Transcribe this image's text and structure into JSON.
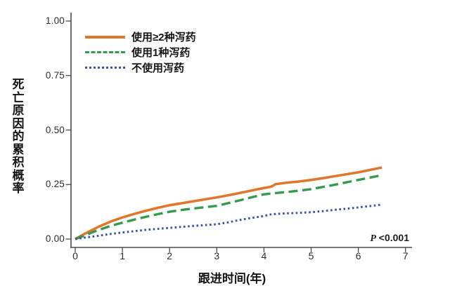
{
  "chart_data": {
    "type": "line",
    "title": "",
    "xlabel": "跟进时间(年)",
    "ylabel": "死亡原因的累积概率",
    "xlim": [
      0,
      7.35
    ],
    "ylim": [
      0,
      1.05
    ],
    "grid": false,
    "legend_position": "top-left-inside",
    "x_ticks": [
      0,
      1,
      2,
      3,
      4,
      5,
      6,
      7
    ],
    "y_ticks": [
      {
        "v": 1.0,
        "label": "1.00"
      },
      {
        "v": 0.75,
        "label": "0.75"
      },
      {
        "v": 0.5,
        "label": "0.50"
      },
      {
        "v": 0.25,
        "label": "0.25"
      },
      {
        "v": 0.0,
        "label": "0.00"
      }
    ],
    "series": [
      {
        "name": "使用≥2种泻药",
        "color": "#E0772E",
        "style": "solid",
        "points": [
          [
            0,
            0
          ],
          [
            0.15,
            0.018
          ],
          [
            0.3,
            0.035
          ],
          [
            0.5,
            0.057
          ],
          [
            0.75,
            0.08
          ],
          [
            1,
            0.099
          ],
          [
            1.25,
            0.115
          ],
          [
            1.5,
            0.13
          ],
          [
            1.75,
            0.143
          ],
          [
            2,
            0.155
          ],
          [
            2.25,
            0.164
          ],
          [
            2.5,
            0.173
          ],
          [
            2.75,
            0.182
          ],
          [
            3,
            0.191
          ],
          [
            3.25,
            0.201
          ],
          [
            3.5,
            0.212
          ],
          [
            3.75,
            0.223
          ],
          [
            4,
            0.234
          ],
          [
            4.15,
            0.24
          ],
          [
            4.25,
            0.252
          ],
          [
            4.5,
            0.259
          ],
          [
            4.75,
            0.264
          ],
          [
            5,
            0.271
          ],
          [
            5.25,
            0.279
          ],
          [
            5.5,
            0.288
          ],
          [
            5.75,
            0.297
          ],
          [
            6,
            0.306
          ],
          [
            6.25,
            0.317
          ],
          [
            6.5,
            0.328
          ]
        ]
      },
      {
        "name": "使用1种泻药",
        "color": "#349A4E",
        "style": "dashed",
        "points": [
          [
            0,
            0
          ],
          [
            0.15,
            0.012
          ],
          [
            0.3,
            0.025
          ],
          [
            0.5,
            0.042
          ],
          [
            0.75,
            0.06
          ],
          [
            1,
            0.075
          ],
          [
            1.25,
            0.089
          ],
          [
            1.5,
            0.102
          ],
          [
            1.75,
            0.114
          ],
          [
            2,
            0.125
          ],
          [
            2.25,
            0.133
          ],
          [
            2.5,
            0.14
          ],
          [
            2.75,
            0.146
          ],
          [
            3,
            0.152
          ],
          [
            3.25,
            0.165
          ],
          [
            3.5,
            0.178
          ],
          [
            3.75,
            0.192
          ],
          [
            4,
            0.205
          ],
          [
            4.25,
            0.211
          ],
          [
            4.5,
            0.216
          ],
          [
            4.75,
            0.222
          ],
          [
            5,
            0.229
          ],
          [
            5.25,
            0.239
          ],
          [
            5.5,
            0.249
          ],
          [
            5.75,
            0.26
          ],
          [
            6,
            0.271
          ],
          [
            6.25,
            0.282
          ],
          [
            6.5,
            0.293
          ]
        ]
      },
      {
        "name": "不使用泻药",
        "color": "#3A53A4",
        "style": "dotted",
        "points": [
          [
            0,
            0
          ],
          [
            0.25,
            0.008
          ],
          [
            0.5,
            0.015
          ],
          [
            0.75,
            0.023
          ],
          [
            1,
            0.03
          ],
          [
            1.5,
            0.042
          ],
          [
            2,
            0.051
          ],
          [
            2.5,
            0.06
          ],
          [
            3,
            0.068
          ],
          [
            3.25,
            0.077
          ],
          [
            3.5,
            0.088
          ],
          [
            3.75,
            0.097
          ],
          [
            4,
            0.105
          ],
          [
            4.1,
            0.112
          ],
          [
            4.25,
            0.115
          ],
          [
            4.5,
            0.118
          ],
          [
            4.75,
            0.12
          ],
          [
            5,
            0.123
          ],
          [
            5.25,
            0.128
          ],
          [
            5.5,
            0.134
          ],
          [
            5.75,
            0.139
          ],
          [
            6,
            0.145
          ],
          [
            6.25,
            0.151
          ],
          [
            6.5,
            0.158
          ]
        ]
      }
    ]
  },
  "annotation": {
    "p_symbol": "P",
    "p_value": " <0.001"
  },
  "colors": {
    "axis": "#4a4a4a",
    "text": "#1f1f1f",
    "background": "#ffffff"
  }
}
